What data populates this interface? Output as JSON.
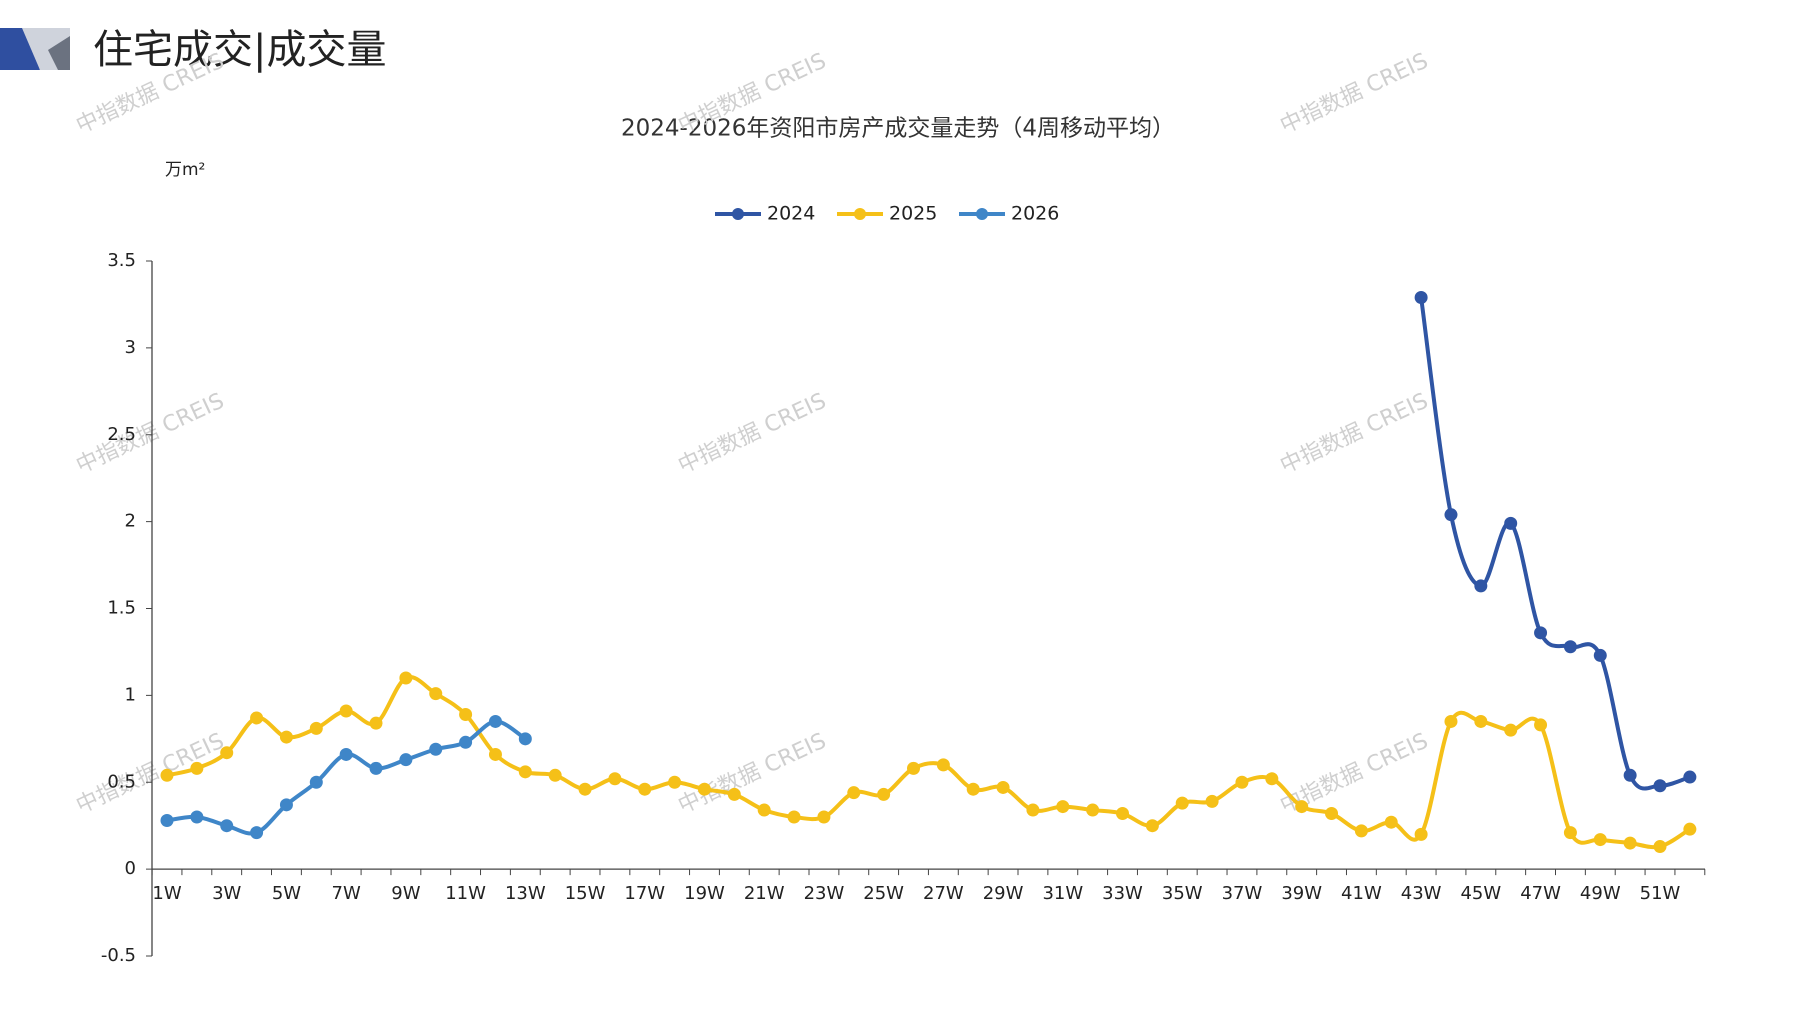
{
  "header": {
    "title": "住宅成交|成交量"
  },
  "watermark": "中指数据 CREIS",
  "chart_data": {
    "type": "line",
    "title": "2024-2026年资阳市房产成交量走势（4周移动平均）",
    "y_axis_label": "万m²",
    "categories": [
      "1W",
      null,
      "3W",
      null,
      "5W",
      null,
      "7W",
      null,
      "9W",
      null,
      "11W",
      null,
      "13W",
      null,
      "15W",
      null,
      "17W",
      null,
      "19W",
      null,
      "21W",
      null,
      "23W",
      null,
      "25W",
      null,
      "27W",
      null,
      "29W",
      null,
      "31W",
      null,
      "33W",
      null,
      "35W",
      null,
      "37W",
      null,
      "39W",
      null,
      "41W",
      null,
      "43W",
      null,
      "45W",
      null,
      "47W",
      null,
      "49W",
      null,
      "51W",
      null
    ],
    "series": [
      {
        "name": "2024",
        "color": "#2f55a4",
        "values": [
          null,
          null,
          null,
          null,
          null,
          null,
          null,
          null,
          null,
          null,
          null,
          null,
          null,
          null,
          null,
          null,
          null,
          null,
          null,
          null,
          null,
          null,
          null,
          null,
          null,
          null,
          null,
          null,
          null,
          null,
          null,
          null,
          null,
          null,
          null,
          null,
          null,
          null,
          null,
          null,
          null,
          null,
          3.29,
          2.04,
          1.63,
          1.99,
          1.36,
          1.28,
          1.23,
          0.54,
          0.48,
          0.53
        ]
      },
      {
        "name": "2025",
        "color": "#f5c018",
        "values": [
          0.54,
          0.58,
          0.67,
          0.87,
          0.76,
          0.81,
          0.91,
          0.84,
          1.1,
          1.01,
          0.89,
          0.66,
          0.56,
          0.54,
          0.46,
          0.52,
          0.46,
          0.5,
          0.46,
          0.43,
          0.34,
          0.3,
          0.3,
          0.44,
          0.43,
          0.58,
          0.6,
          0.46,
          0.47,
          0.34,
          0.36,
          0.34,
          0.32,
          0.25,
          0.38,
          0.39,
          0.5,
          0.52,
          0.36,
          0.32,
          0.22,
          0.27,
          0.2,
          0.85,
          0.85,
          0.8,
          0.83,
          0.21,
          0.17,
          0.15,
          0.13,
          0.23
        ]
      },
      {
        "name": "2026",
        "color": "#3f86c8",
        "values": [
          0.28,
          0.3,
          0.25,
          0.21,
          0.37,
          0.5,
          0.66,
          0.58,
          0.63,
          0.69,
          0.73,
          0.85,
          0.75,
          null,
          null,
          null,
          null,
          null,
          null,
          null,
          null,
          null,
          null,
          null,
          null,
          null,
          null,
          null,
          null,
          null,
          null,
          null,
          null,
          null,
          null,
          null,
          null,
          null,
          null,
          null,
          null,
          null,
          null,
          null,
          null,
          null,
          null,
          null,
          null,
          null,
          null,
          null
        ]
      }
    ],
    "ylim": [
      -0.5,
      3.5
    ],
    "yticks": [
      -0.5,
      0,
      0.5,
      1,
      1.5,
      2,
      2.5,
      3,
      3.5
    ],
    "legend": "top",
    "grid": false
  }
}
